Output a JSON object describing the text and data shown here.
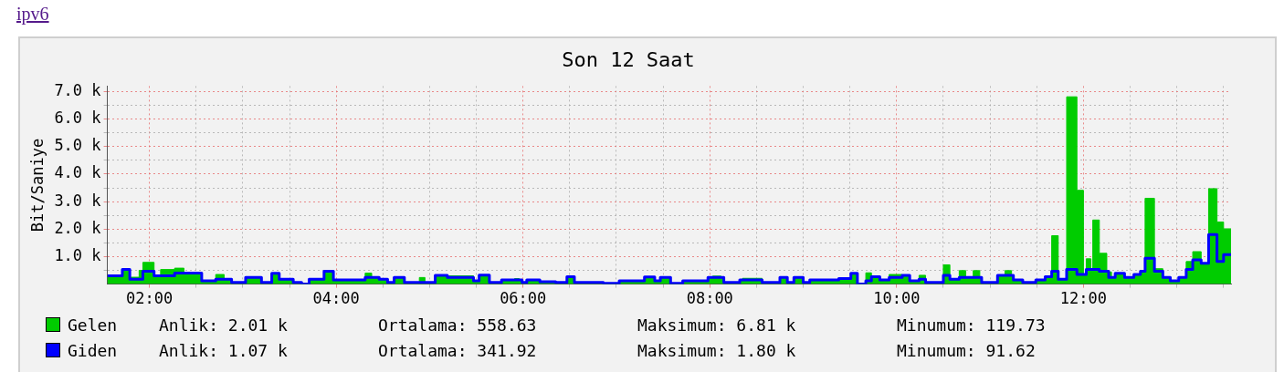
{
  "chart_data": {
    "type": "area",
    "title": "Son 12 Saat",
    "ylabel": "Bit/Saniye",
    "annotations": [
      "ipv6",
      "Anlik: 2.01 k",
      "Ortalama: 558.63",
      "Maksimum: 6.81 k",
      "Minumum: 119.73",
      "Anlik: 1.07 k",
      "Ortalama: 341.92",
      "Maksimum: 1.80 k",
      "Minumum: 91.62"
    ],
    "x": [
      1.55,
      1.71,
      1.79,
      1.89,
      1.93,
      2.05,
      2.12,
      2.27,
      2.37,
      2.56,
      2.71,
      2.8,
      2.88,
      3.03,
      3.2,
      3.31,
      3.39,
      3.54,
      3.63,
      3.71,
      3.87,
      3.97,
      4.31,
      4.38,
      4.46,
      4.55,
      4.62,
      4.73,
      4.89,
      4.95,
      5.06,
      5.19,
      5.47,
      5.53,
      5.64,
      5.77,
      5.91,
      5.96,
      5.99,
      6.04,
      6.18,
      6.35,
      6.47,
      6.55,
      6.86,
      7.03,
      7.3,
      7.41,
      7.47,
      7.58,
      7.71,
      7.98,
      8.03,
      8.12,
      8.15,
      8.32,
      8.35,
      8.56,
      8.75,
      8.83,
      8.9,
      9.0,
      9.07,
      9.38,
      9.51,
      9.58,
      9.67,
      9.73,
      9.82,
      9.92,
      10.06,
      10.14,
      10.24,
      10.31,
      10.5,
      10.57,
      10.67,
      10.74,
      10.82,
      10.89,
      10.91,
      11.08,
      11.16,
      11.23,
      11.25,
      11.35,
      11.49,
      11.59,
      11.66,
      11.73,
      11.82,
      11.93,
      12.0,
      12.03,
      12.08,
      12.1,
      12.17,
      12.25,
      12.27,
      12.3,
      12.34,
      12.44,
      12.54,
      12.61,
      12.66,
      12.76,
      12.85,
      12.93,
      13.02,
      13.1,
      13.17,
      13.26,
      13.34,
      13.43,
      13.5,
      13.58
    ],
    "series": [
      {
        "name": "Gelen",
        "color": "#00cc00",
        "values": [
          300,
          530,
          250,
          500,
          790,
          300,
          530,
          580,
          400,
          120,
          350,
          180,
          60,
          240,
          60,
          390,
          180,
          60,
          0,
          180,
          470,
          150,
          400,
          240,
          180,
          60,
          240,
          60,
          240,
          60,
          320,
          300,
          120,
          330,
          60,
          150,
          200,
          150,
          60,
          150,
          90,
          60,
          270,
          60,
          30,
          120,
          260,
          120,
          240,
          30,
          120,
          240,
          290,
          240,
          60,
          150,
          210,
          60,
          240,
          60,
          240,
          60,
          150,
          200,
          390,
          0,
          410,
          270,
          150,
          350,
          320,
          120,
          320,
          60,
          700,
          180,
          490,
          240,
          490,
          240,
          60,
          320,
          490,
          320,
          150,
          60,
          150,
          270,
          1760,
          180,
          6810,
          3410,
          350,
          920,
          530,
          2330,
          1120,
          470,
          440,
          240,
          390,
          240,
          350,
          470,
          3120,
          560,
          240,
          120,
          240,
          820,
          1180,
          760,
          3470,
          2260,
          2010,
          2010
        ]
      },
      {
        "name": "Giden",
        "type": "step",
        "color": "#0000ff",
        "values": [
          300,
          530,
          180,
          180,
          470,
          300,
          300,
          400,
          400,
          120,
          180,
          180,
          60,
          240,
          60,
          390,
          180,
          60,
          0,
          180,
          470,
          150,
          240,
          240,
          180,
          60,
          240,
          60,
          60,
          60,
          320,
          240,
          120,
          330,
          60,
          150,
          150,
          150,
          60,
          150,
          90,
          60,
          270,
          60,
          30,
          120,
          260,
          120,
          240,
          30,
          120,
          240,
          240,
          240,
          60,
          150,
          150,
          60,
          240,
          60,
          240,
          60,
          150,
          200,
          390,
          0,
          120,
          270,
          150,
          240,
          320,
          120,
          180,
          60,
          320,
          180,
          240,
          240,
          240,
          240,
          60,
          320,
          320,
          320,
          150,
          60,
          150,
          270,
          470,
          180,
          530,
          350,
          350,
          530,
          530,
          530,
          470,
          470,
          240,
          240,
          390,
          240,
          350,
          470,
          940,
          470,
          240,
          120,
          240,
          530,
          880,
          760,
          1800,
          820,
          1070,
          1070
        ]
      }
    ],
    "xlim": [
      1.55,
      13.58
    ],
    "xticks": [
      {
        "value": 2,
        "label": "02:00"
      },
      {
        "value": 2.5,
        "label": null
      },
      {
        "value": 3,
        "label": null
      },
      {
        "value": 3.5,
        "label": null
      },
      {
        "value": 4,
        "label": "04:00"
      },
      {
        "value": 4.5,
        "label": null
      },
      {
        "value": 5,
        "label": null
      },
      {
        "value": 5.5,
        "label": null
      },
      {
        "value": 6,
        "label": "06:00"
      },
      {
        "value": 6.5,
        "label": null
      },
      {
        "value": 7,
        "label": null
      },
      {
        "value": 7.5,
        "label": null
      },
      {
        "value": 8,
        "label": "08:00"
      },
      {
        "value": 8.5,
        "label": null
      },
      {
        "value": 9,
        "label": null
      },
      {
        "value": 9.5,
        "label": null
      },
      {
        "value": 10,
        "label": "10:00"
      },
      {
        "value": 10.5,
        "label": null
      },
      {
        "value": 11,
        "label": null
      },
      {
        "value": 11.5,
        "label": null
      },
      {
        "value": 12,
        "label": "12:00"
      },
      {
        "value": 12.5,
        "label": null
      },
      {
        "value": 13,
        "label": null
      },
      {
        "value": 13.5,
        "label": null
      }
    ],
    "ylim": [
      0,
      7200
    ],
    "yticks": [
      {
        "value": 500,
        "label": null
      },
      {
        "value": 1000,
        "label": "1.0 k"
      },
      {
        "value": 1500,
        "label": null
      },
      {
        "value": 2000,
        "label": "2.0 k"
      },
      {
        "value": 2500,
        "label": null
      },
      {
        "value": 3000,
        "label": "3.0 k"
      },
      {
        "value": 3500,
        "label": null
      },
      {
        "value": 4000,
        "label": "4.0 k"
      },
      {
        "value": 4500,
        "label": null
      },
      {
        "value": 5000,
        "label": "5.0 k"
      },
      {
        "value": 5500,
        "label": null
      },
      {
        "value": 6000,
        "label": "6.0 k"
      },
      {
        "value": 6500,
        "label": null
      },
      {
        "value": 7000,
        "label": "7.0 k"
      }
    ],
    "grid": true,
    "legend": "bottom"
  }
}
